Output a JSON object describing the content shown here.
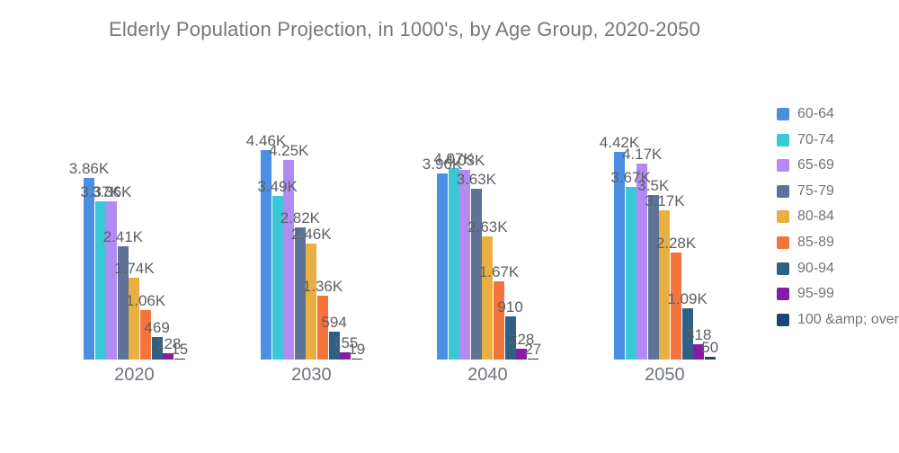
{
  "title": "Elderly Population Projection, in 1000's, by Age Group, 2020-2050",
  "chart_data": {
    "type": "bar",
    "title": "Elderly Population Projection, in 1000's, by Age Group, 2020-2050",
    "categories": [
      "2020",
      "2030",
      "2040",
      "2050"
    ],
    "series": [
      {
        "name": "60-64",
        "color": "#4A8FE2",
        "values": [
          3860,
          4460,
          3960,
          4420
        ],
        "labels": [
          "3.86K",
          "4.46K",
          "3.96K",
          "4.42K"
        ]
      },
      {
        "name": "70-74",
        "color": "#3BC8D6",
        "values": [
          3370,
          3490,
          4070,
          3670
        ],
        "labels": [
          "3.37K",
          "3.49K",
          "4.07K",
          "3.67K"
        ]
      },
      {
        "name": "65-69",
        "color": "#B28BF2",
        "values": [
          3360,
          4250,
          4030,
          4170
        ],
        "labels": [
          "3.36K",
          "4.25K",
          "4.03K",
          "4.17K"
        ]
      },
      {
        "name": "75-79",
        "color": "#5F7396",
        "values": [
          2410,
          2820,
          3630,
          3500
        ],
        "labels": [
          "2.41K",
          "2.82K",
          "3.63K",
          "3.5K"
        ]
      },
      {
        "name": "80-84",
        "color": "#E8AF42",
        "values": [
          1740,
          2460,
          2630,
          3170
        ],
        "labels": [
          "1.74K",
          "2.46K",
          "2.63K",
          "3.17K"
        ]
      },
      {
        "name": "85-89",
        "color": "#F3753C",
        "values": [
          1060,
          1360,
          1670,
          2280
        ],
        "labels": [
          "1.06K",
          "1.36K",
          "1.67K",
          "2.28K"
        ]
      },
      {
        "name": "90-94",
        "color": "#2E6083",
        "values": [
          469,
          594,
          910,
          1090
        ],
        "labels": [
          "469",
          "594",
          "910",
          "1.09K"
        ]
      },
      {
        "name": "95-99",
        "color": "#871CA4",
        "values": [
          128,
          155,
          228,
          318
        ],
        "labels": [
          "128",
          "155",
          "228",
          "318"
        ]
      },
      {
        "name": "100 &amp; over",
        "color": "#1D4473",
        "values": [
          15,
          19,
          27,
          50
        ],
        "labels": [
          "15",
          "19",
          "27",
          "50"
        ]
      }
    ],
    "xlabel": "",
    "ylabel": "",
    "ylim": [
      0,
      4460
    ],
    "grid": false,
    "legend_position": "right"
  }
}
